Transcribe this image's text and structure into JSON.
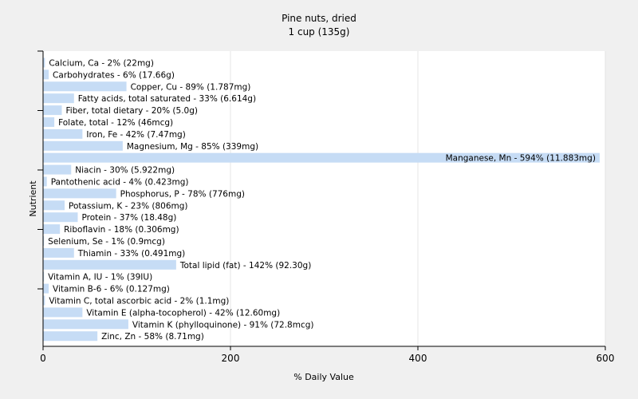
{
  "chart_data": {
    "type": "bar",
    "orientation": "horizontal",
    "title": "Pine nuts, dried",
    "subtitle": "1 cup (135g)",
    "xlabel": "% Daily Value",
    "ylabel": "Nutrient",
    "xlim": [
      0,
      600
    ],
    "xticks": [
      "0",
      "200",
      "400",
      "600"
    ],
    "grid": true,
    "bar_color": "#c6dcf5",
    "categories": [
      "Calcium, Ca",
      "Carbohydrates",
      "Copper, Cu",
      "Fatty acids, total saturated",
      "Fiber, total dietary",
      "Folate, total",
      "Iron, Fe",
      "Magnesium, Mg",
      "Manganese, Mn",
      "Niacin",
      "Pantothenic acid",
      "Phosphorus, P",
      "Potassium, K",
      "Protein",
      "Riboflavin",
      "Selenium, Se",
      "Thiamin",
      "Total lipid (fat)",
      "Vitamin A, IU",
      "Vitamin B-6",
      "Vitamin C, total ascorbic acid",
      "Vitamin E (alpha-tocopherol)",
      "Vitamin K (phylloquinone)",
      "Zinc, Zn"
    ],
    "values": [
      2,
      6,
      89,
      33,
      20,
      12,
      42,
      85,
      594,
      30,
      4,
      78,
      23,
      37,
      18,
      1,
      33,
      142,
      1,
      6,
      2,
      42,
      91,
      58
    ],
    "labels": [
      "Calcium, Ca - 2% (22mg)",
      "Carbohydrates - 6% (17.66g)",
      "Copper, Cu - 89% (1.787mg)",
      "Fatty acids, total saturated - 33% (6.614g)",
      "Fiber, total dietary - 20% (5.0g)",
      "Folate, total - 12% (46mcg)",
      "Iron, Fe - 42% (7.47mg)",
      "Magnesium, Mg - 85% (339mg)",
      "Manganese, Mn - 594% (11.883mg)",
      "Niacin - 30% (5.922mg)",
      "Pantothenic acid - 4% (0.423mg)",
      "Phosphorus, P - 78% (776mg)",
      "Potassium, K - 23% (806mg)",
      "Protein - 37% (18.48g)",
      "Riboflavin - 18% (0.306mg)",
      "Selenium, Se - 1% (0.9mcg)",
      "Thiamin - 33% (0.491mg)",
      "Total lipid (fat) - 142% (92.30g)",
      "Vitamin A, IU - 1% (39IU)",
      "Vitamin B-6 - 6% (0.127mg)",
      "Vitamin C, total ascorbic acid - 2% (1.1mg)",
      "Vitamin E (alpha-tocopherol) - 42% (12.60mg)",
      "Vitamin K (phylloquinone) - 91% (72.8mcg)",
      "Zinc, Zn - 58% (8.71mg)"
    ]
  }
}
